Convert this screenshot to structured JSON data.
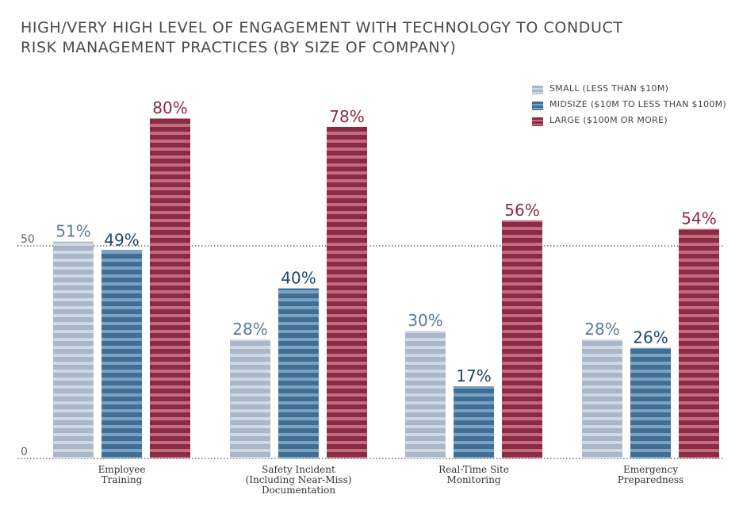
{
  "chart_data": {
    "type": "bar",
    "title": "HIGH/VERY HIGH LEVEL OF ENGAGEMENT WITH TECHNOLOGY TO CONDUCT RISK MANAGEMENT PRACTICES (BY SIZE OF COMPANY)",
    "title_lines": [
      "HIGH/VERY HIGH LEVEL OF ENGAGEMENT WITH TECHNOLOGY TO CONDUCT",
      "RISK MANAGEMENT PRACTICES (BY SIZE OF COMPANY)"
    ],
    "categories": [
      [
        "Employee",
        "Training"
      ],
      [
        "Safety Incident",
        "(Including Near-Miss)",
        "Documentation"
      ],
      [
        "Real-Time Site",
        "Monitoring"
      ],
      [
        "Emergency",
        "Preparedness"
      ]
    ],
    "series": [
      {
        "name": "SMALL (LESS THAN $10M)",
        "values": [
          51,
          28,
          30,
          28
        ],
        "labels": [
          "51%",
          "28%",
          "30%",
          "28%"
        ],
        "color": "#a9b7c8",
        "stripe": "#d0d8e2",
        "label_color": "#5a7a98"
      },
      {
        "name": "MIDSIZE ($10M TO LESS THAN $100M)",
        "values": [
          49,
          40,
          17,
          26
        ],
        "labels": [
          "49%",
          "40%",
          "17%",
          "26%"
        ],
        "color": "#3f6f96",
        "stripe": "#7da2c0",
        "label_color": "#1f4868"
      },
      {
        "name": "LARGE ($100M OR MORE)",
        "values": [
          80,
          78,
          56,
          54
        ],
        "labels": [
          "80%",
          "78%",
          "56%",
          "54%"
        ],
        "color": "#8c2943",
        "stripe": "#c06d84",
        "label_color": "#8c2943"
      }
    ],
    "yticks": [
      {
        "value": 0,
        "label": "0"
      },
      {
        "value": 50,
        "label": "50"
      }
    ],
    "ylim": [
      0,
      100
    ],
    "grid": "dotted line at 50 and baseline",
    "legend_position": "top-right"
  }
}
